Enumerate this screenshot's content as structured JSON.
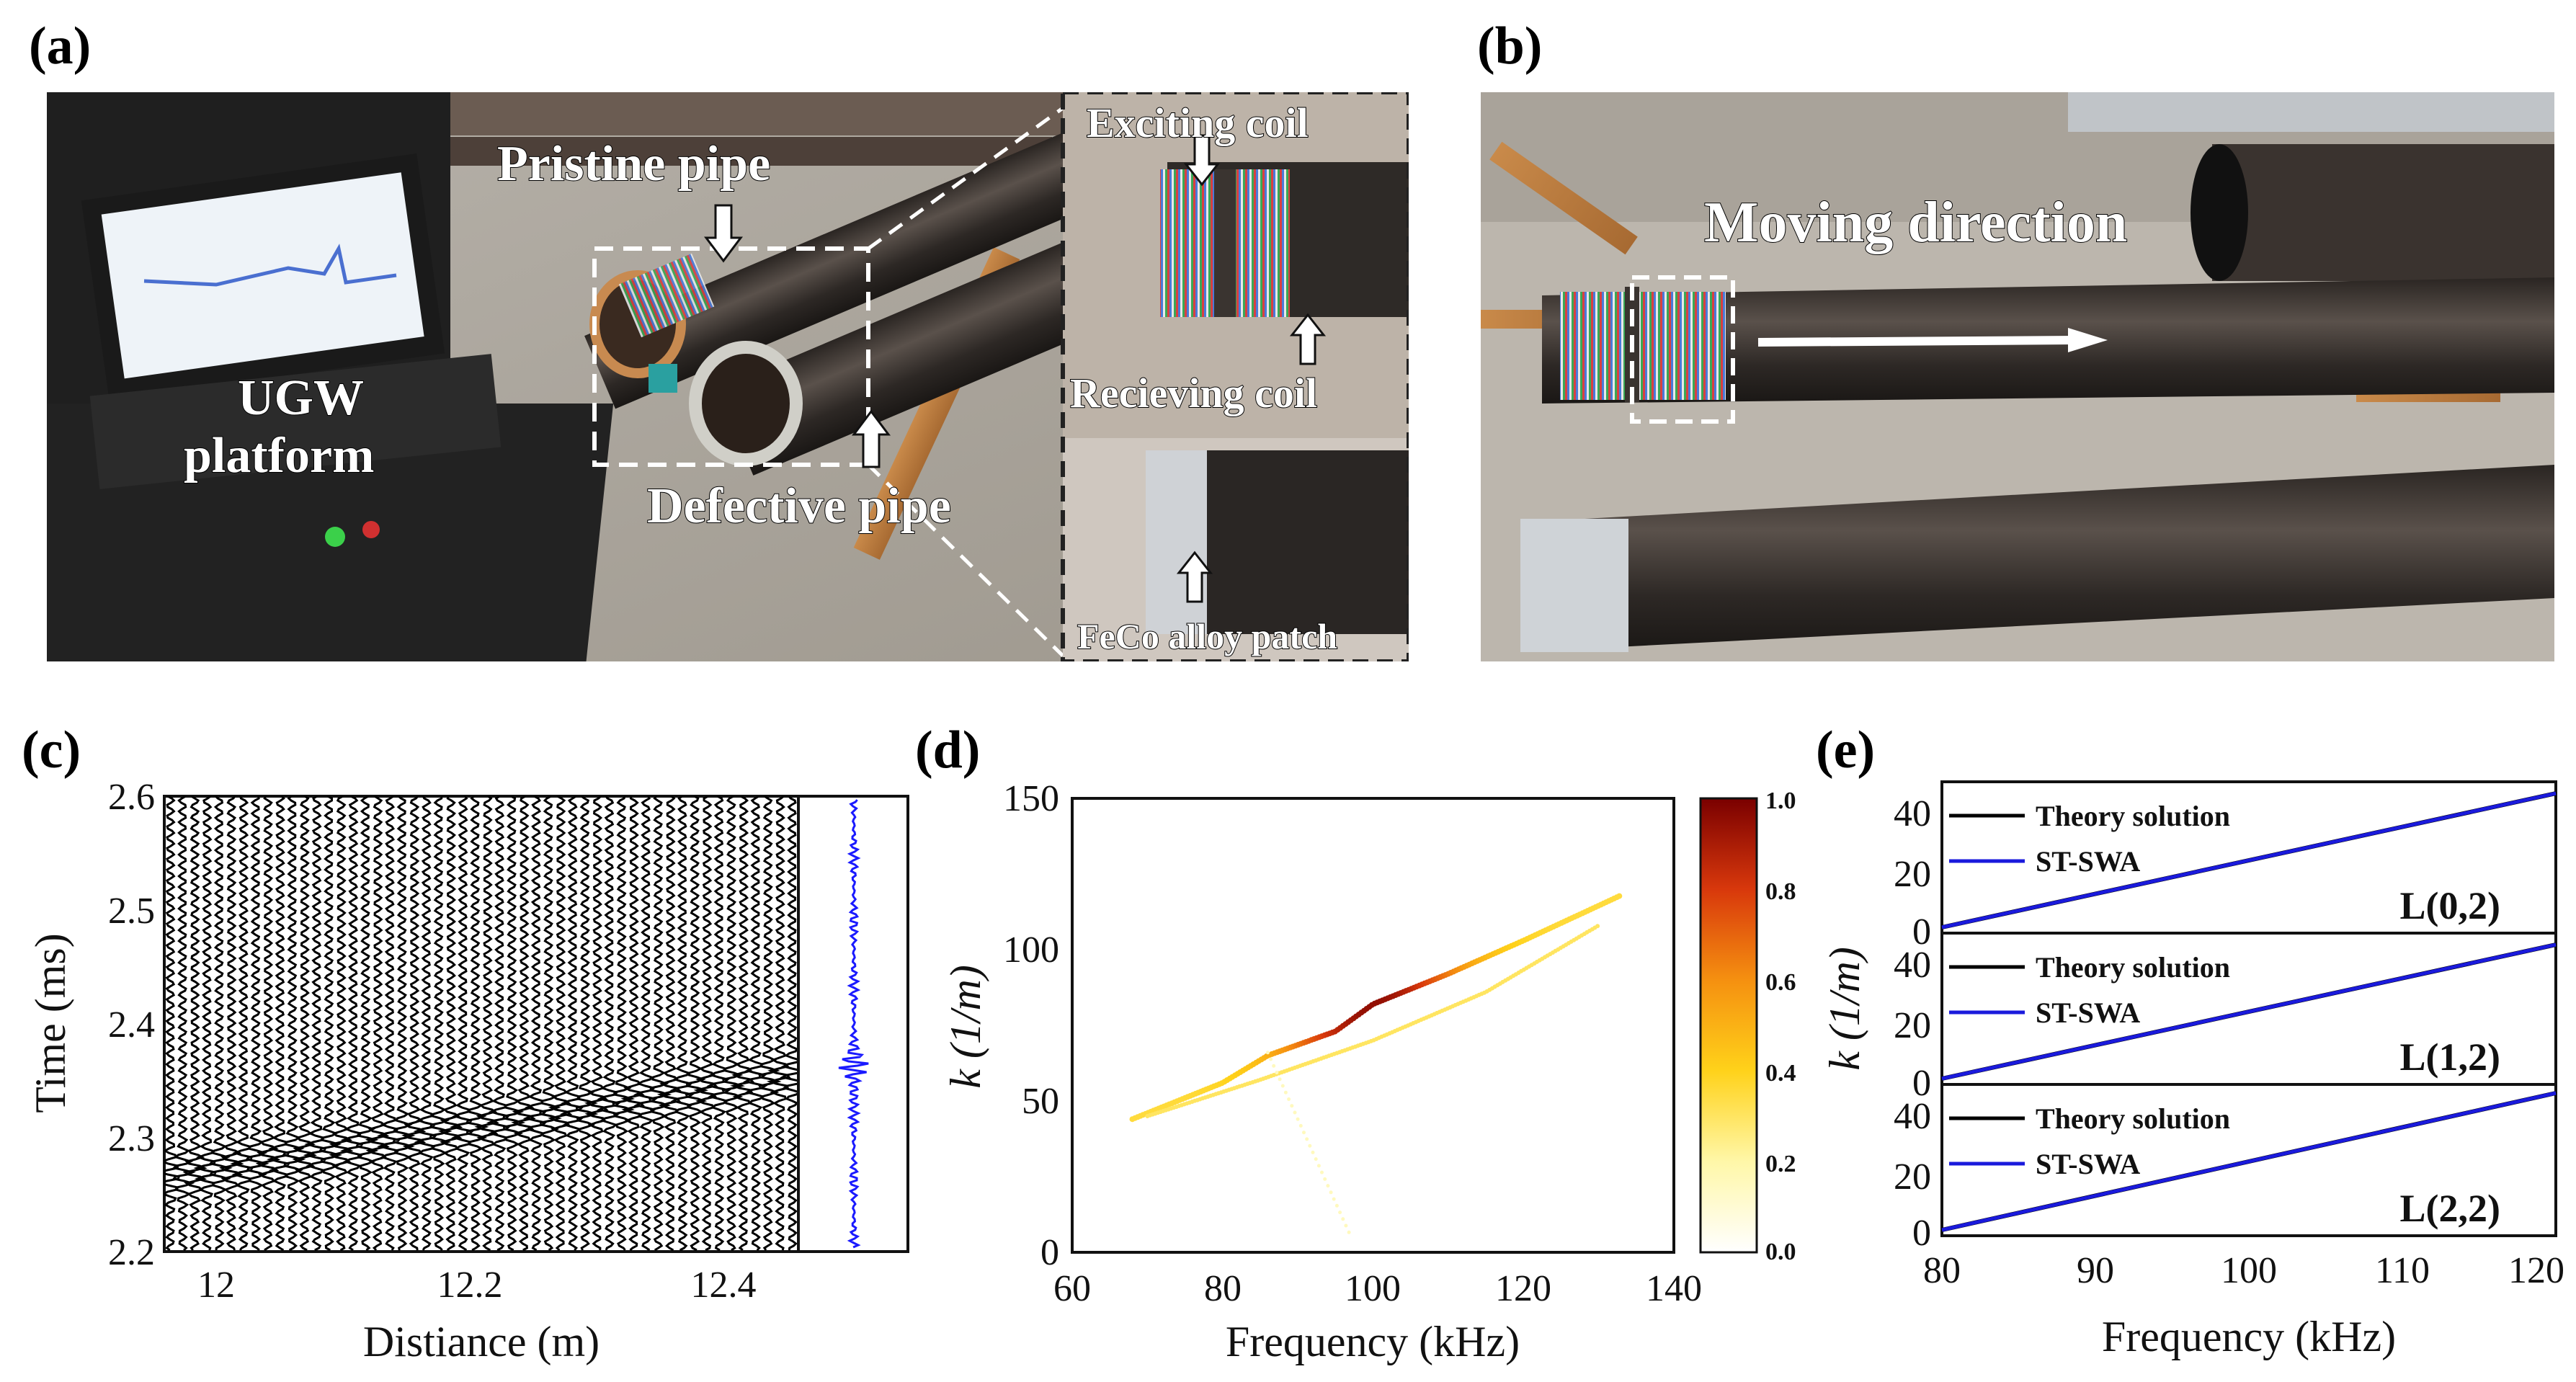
{
  "panels": {
    "a": {
      "label": "(a)",
      "annotations": {
        "pristine": "Pristine pipe",
        "platform_line1": "UGW",
        "platform_line2": "platform",
        "defective": "Defective pipe",
        "exciting": "Exciting coil",
        "receiving": "Recieving coil",
        "patch": "FeCo alloy patch"
      }
    },
    "b": {
      "label": "(b)",
      "annotations": {
        "moving": "Moving direction"
      }
    },
    "c": {
      "label": "(c)",
      "xlabel": "Distiance (m)",
      "ylabel": "Time (ms)",
      "xticks": [
        "12",
        "12.2",
        "12.4"
      ],
      "yticks": [
        "2.2",
        "2.3",
        "2.4",
        "2.5",
        "2.6"
      ]
    },
    "d": {
      "label": "(d)",
      "xlabel": "Frequency (kHz)",
      "ylabel": "k (1/m)",
      "xticks": [
        "60",
        "80",
        "100",
        "120",
        "140"
      ],
      "yticks": [
        "0",
        "50",
        "100",
        "150"
      ],
      "colorbar_ticks": [
        "1.0",
        "0.8",
        "0.6",
        "0.4",
        "0.2",
        "0.0"
      ]
    },
    "e": {
      "label": "(e)",
      "xlabel": "Frequency (kHz)",
      "ylabel": "k (1/m)",
      "xticks": [
        "80",
        "90",
        "100",
        "110",
        "120"
      ],
      "yticks": [
        "0",
        "20",
        "40"
      ],
      "legend": [
        "Theory solution",
        "ST-SWA"
      ],
      "modes": [
        "L(0,2)",
        "L(1,2)",
        "L(2,2)"
      ]
    }
  },
  "chart_data": [
    {
      "type": "heatmap",
      "panel": "c",
      "xlabel": "Distiance (m)",
      "ylabel": "Time (ms)",
      "xlim": [
        11.95,
        12.45
      ],
      "ylim": [
        2.2,
        2.6
      ],
      "series": [
        {
          "name": "",
          "x": [
            11.95,
            12.45
          ],
          "values": [
            2.265,
            2.355
          ]
        }
      ]
    },
    {
      "type": "heatmap",
      "panel": "d",
      "xlabel": "Frequency (kHz)",
      "ylabel": "k (1/m)",
      "xlim": [
        60,
        140
      ],
      "ylim": [
        0,
        150
      ],
      "color_range": [
        0.0,
        1.0
      ],
      "series": [
        {
          "name": "",
          "x": [
            68,
            80,
            86,
            95,
            100,
            110,
            120,
            133
          ],
          "values": [
            44,
            56,
            65,
            73,
            82,
            92,
            103,
            118
          ]
        },
        {
          "name": "",
          "x": [
            70,
            85,
            100,
            115,
            130
          ],
          "values": [
            45,
            57,
            70,
            86,
            108
          ]
        }
      ]
    },
    {
      "type": "line",
      "panel": "e",
      "xlabel": "Frequency (kHz)",
      "ylabel": "k (1/m)",
      "xlim": [
        80,
        120
      ],
      "ylim": [
        0,
        48
      ],
      "subplots": [
        {
          "mode": "L(0,2)",
          "series": [
            {
              "name": "Theory solution",
              "x": [
                80,
                120
              ],
              "values": [
                0,
                46
              ]
            },
            {
              "name": "ST-SWA",
              "x": [
                80,
                120
              ],
              "values": [
                0,
                46
              ]
            }
          ]
        },
        {
          "mode": "L(1,2)",
          "series": [
            {
              "name": "Theory solution",
              "x": [
                80,
                120
              ],
              "values": [
                0,
                46
              ]
            },
            {
              "name": "ST-SWA",
              "x": [
                80,
                120
              ],
              "values": [
                0,
                46
              ]
            }
          ]
        },
        {
          "mode": "L(2,2)",
          "series": [
            {
              "name": "Theory solution",
              "x": [
                80,
                120
              ],
              "values": [
                0,
                47
              ]
            },
            {
              "name": "ST-SWA",
              "x": [
                80,
                120
              ],
              "values": [
                0,
                47
              ]
            }
          ]
        }
      ]
    }
  ]
}
